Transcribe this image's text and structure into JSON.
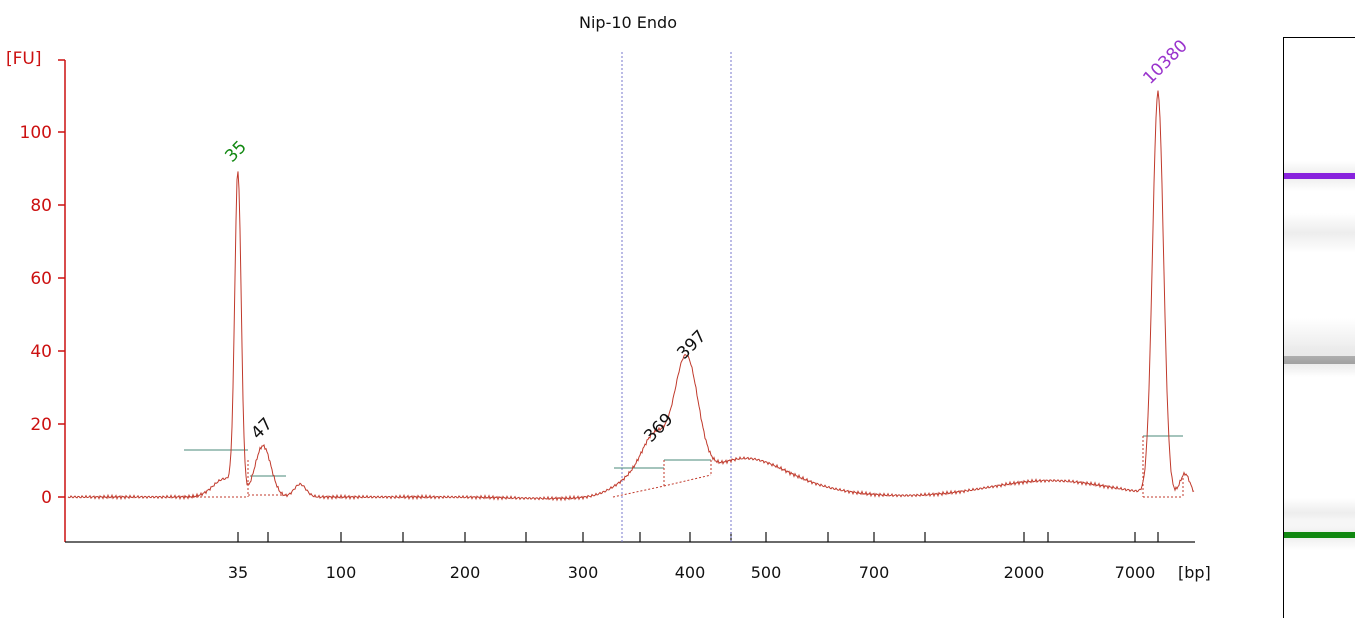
{
  "chart_data": {
    "type": "line",
    "title": "Nip-10 Endo",
    "ylabel": "[FU]",
    "xlabel": "[bp]",
    "ylim": [
      -12,
      110
    ],
    "yticks": [
      0,
      20,
      40,
      60,
      80,
      100
    ],
    "xticks": [
      "35",
      "100",
      "200",
      "300",
      "400",
      "500",
      "700",
      "2000",
      "7000"
    ],
    "peaks": [
      {
        "label": "35",
        "color": "#118811",
        "fu": 88
      },
      {
        "label": "47",
        "color": "#111111",
        "fu": 14
      },
      {
        "label": "369",
        "color": "#111111",
        "fu": 12
      },
      {
        "label": "397",
        "color": "#111111",
        "fu": 35
      },
      {
        "label": "10380",
        "color": "#9933cc",
        "fu": 110
      }
    ],
    "region_markers": [
      "region-start",
      "region-end"
    ],
    "series": [
      {
        "line_color": "#c0392b"
      }
    ],
    "colors": {
      "axis": "#cc1111",
      "trace": "#c0392b",
      "marker": "#7777cc",
      "baseline": "#4a8a7a"
    }
  },
  "gel": {
    "bands": [
      {
        "name": "upper-marker",
        "color": "#8822dd"
      },
      {
        "name": "sample-band",
        "color": "#888888"
      },
      {
        "name": "lower-marker",
        "color": "#118811"
      }
    ]
  }
}
